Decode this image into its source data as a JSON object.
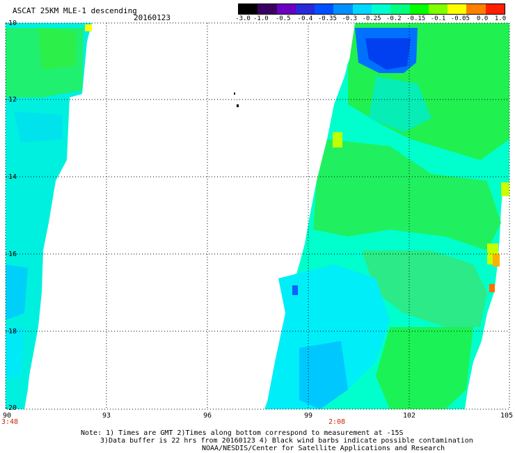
{
  "header": {
    "title": "ASCAT 25KM MLE-1 descending",
    "date": "20160123"
  },
  "colorbar": {
    "labels": [
      "-3.0",
      "-1.0",
      "-0.5",
      "-0.4",
      "-0.35",
      "-0.3",
      "-0.25",
      "-0.2",
      "-0.15",
      "-0.1",
      "-0.05",
      "0.0",
      "1.0"
    ],
    "colors": [
      "#000000",
      "#3a0060",
      "#6a00c0",
      "#2a2ad8",
      "#0050ff",
      "#0090ff",
      "#00d8ff",
      "#00ffd0",
      "#00ff80",
      "#00ff00",
      "#80ff00",
      "#ffff00",
      "#ff8000",
      "#ff2000"
    ]
  },
  "axes": {
    "lat_labels": [
      "-10",
      "-12",
      "-14",
      "-16",
      "-18",
      "-20"
    ],
    "lon_labels": [
      "90",
      "93",
      "96",
      "99",
      "102",
      "105"
    ],
    "times": [
      "3:48",
      "2:08"
    ]
  },
  "notes": [
    "Note: 1) Times are GMT 2)Times along bottom correspond to measurement at -15S",
    "3)Data buffer is 22 hrs from 20160123 4) Black wind barbs indicate possible contamination",
    "NOAA/NESDIS/Center for Satellite Applications and Research"
  ]
}
